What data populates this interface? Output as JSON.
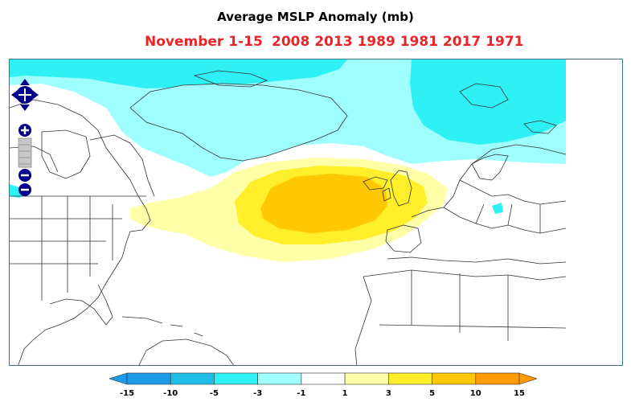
{
  "title": "Average MSLP Anomaly (mb)",
  "subtitle": {
    "period": "November 1-15",
    "years": "2008 2013 1989 1981 2017 1971"
  },
  "map": {
    "region": "North Atlantic, North America, Europe, Africa",
    "basemap": "country-and-state-boundaries"
  },
  "legend": {
    "ticks": [
      "-15",
      "-10",
      "-5",
      "-3",
      "-1",
      "1",
      "3",
      "5",
      "10",
      "15"
    ],
    "colors": [
      "#1e9be8",
      "#1fbde8",
      "#2ff0f5",
      "#9ffffe",
      "#ffffff",
      "#ffffa8",
      "#ffef2a",
      "#ffc802",
      "#ff9a00"
    ],
    "extend_low_color": "#1e9be8",
    "extend_high_color": "#ff9a00"
  },
  "zoom_controls": {
    "pan": "pan-control-icon",
    "zoom_in": "plus-icon",
    "zoom_out": "minus-icon"
  }
}
